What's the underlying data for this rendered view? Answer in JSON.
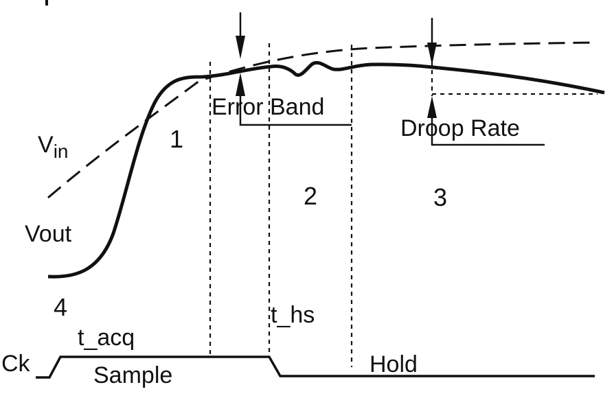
{
  "labels": {
    "vin_main": "V",
    "vin_sub": "in",
    "vout": "Vout",
    "region_1": "1",
    "region_2": "2",
    "region_3": "3",
    "region_4": "4",
    "error_band": "Error Band",
    "droop_rate": "Droop Rate",
    "t_acq": "t_acq",
    "t_hs": "t_hs",
    "clock": "Ck",
    "sample": "Sample",
    "hold": "Hold"
  },
  "colors": {
    "ink": "#111111",
    "background": "#ffffff"
  }
}
